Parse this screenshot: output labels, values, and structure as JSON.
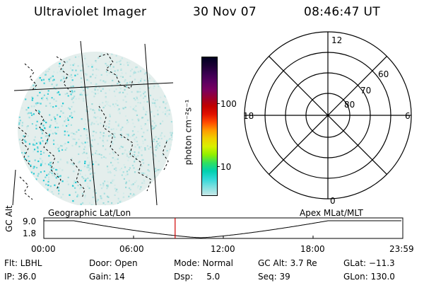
{
  "header": {
    "instrument": "Ultraviolet Imager",
    "date": "30 Nov 07",
    "time": "08:46:47 UT"
  },
  "colorbar": {
    "unit_label": "photon cm⁻²s⁻¹",
    "ticks": [
      "100",
      "10"
    ],
    "colors": [
      "#000020",
      "#1a0033",
      "#3a0050",
      "#5a0060",
      "#7a0060",
      "#9a0030",
      "#c00000",
      "#e01000",
      "#ff4a00",
      "#ff9a00",
      "#f0d000",
      "#d8f000",
      "#90f000",
      "#30e060",
      "#00d0b0",
      "#30d8d8",
      "#80e0e0",
      "#c8e8e8"
    ]
  },
  "polar_plot": {
    "mlt_labels": {
      "top": "12",
      "left": "18",
      "right": "6",
      "bottom": "0"
    },
    "mlat_labels": [
      "60",
      "70",
      "80"
    ]
  },
  "timeline": {
    "ylabel": "GC Alt",
    "yticks": [
      "9.0",
      "1.8"
    ],
    "left_label": "Geographic Lat/Lon",
    "right_label": "Apex  MLat/MLT",
    "xticks": [
      "00:00",
      "06:00",
      "12:00",
      "18:00",
      "23:59"
    ],
    "marker_time_hours": 8.78
  },
  "info": {
    "row1": [
      {
        "label": "Flt: LBHL"
      },
      {
        "label": "Door: Open"
      },
      {
        "label": "Mode: Normal"
      },
      {
        "label": "GC Alt: 3.7 Re"
      },
      {
        "label": "GLat: −11.3"
      }
    ],
    "row2": [
      {
        "label": "IP: 36.0"
      },
      {
        "label": "Gain: 14"
      },
      {
        "label": "Dsp:     5.0"
      },
      {
        "label": "Seq: 39"
      },
      {
        "label": "GLon: 130.0"
      }
    ]
  }
}
